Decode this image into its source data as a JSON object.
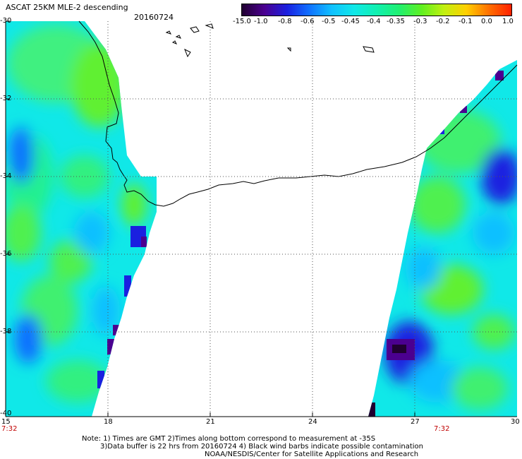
{
  "header": {
    "title": "ASCAT 25KM MLE-2 descending",
    "date": "20160724"
  },
  "colorbar": {
    "labels": [
      "-15.0",
      "-1.0",
      "-0.8",
      "-0.6",
      "-0.5",
      "-0.45",
      "-0.4",
      "-0.35",
      "-0.3",
      "-0.2",
      "-0.1",
      "0.0",
      "1.0"
    ],
    "colors": [
      "#200030",
      "#4b0090",
      "#1a20e0",
      "#1070ff",
      "#10c0ff",
      "#10e8e8",
      "#10f0b0",
      "#20f070",
      "#60f020",
      "#c0f010",
      "#ffd000",
      "#ff7000",
      "#ff2000"
    ]
  },
  "axes": {
    "lat_labels": [
      "-30",
      "-32",
      "-34",
      "-36",
      "-38",
      "-40"
    ],
    "lon_labels": [
      "15",
      "18",
      "21",
      "24",
      "27",
      "30"
    ],
    "lat_range": [
      -40,
      -30
    ],
    "lon_range": [
      15,
      30
    ]
  },
  "time_marks": [
    {
      "label": "7:32",
      "lon": 15
    },
    {
      "label": "7:32",
      "lon": 28.5
    }
  ],
  "notes": {
    "line1": "Note: 1) Times are GMT 2)Times along bottom correspond to measurement at -35S",
    "line2": "3)Data buffer is 22 hrs from 20160724 4) Black wind barbs indicate possible contamination",
    "line3": "NOAA/NESDIS/Center for Satellite Applications and Research"
  }
}
